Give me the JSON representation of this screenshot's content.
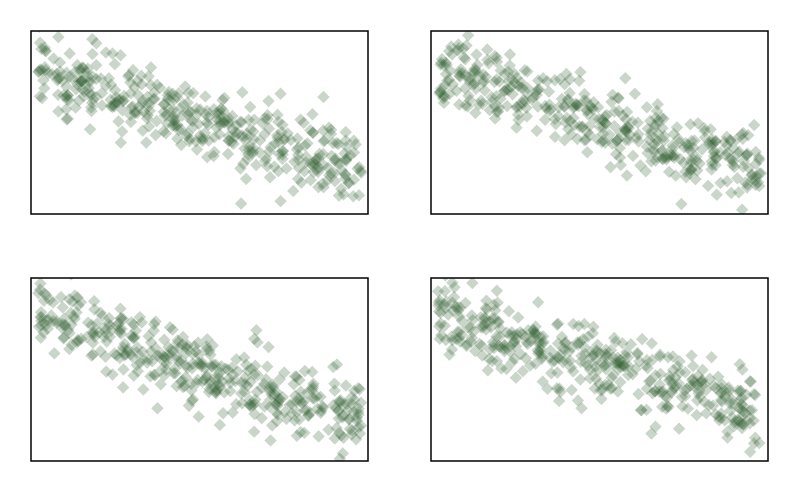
{
  "chart_data": [
    {
      "type": "scatter",
      "title": "",
      "xlabel": "",
      "ylabel": "",
      "grid": false,
      "legend": "none",
      "marker": {
        "shape": "diamond",
        "color": "#2d5a2d",
        "opacity": 0.25
      },
      "xlim": [
        0,
        1
      ],
      "ylim": [
        0,
        1
      ],
      "trend": {
        "x_start": 0.02,
        "x_end": 0.98,
        "y_start": 0.78,
        "y_end": 0.23,
        "spread": 0.1
      },
      "n_points": 400,
      "seed": 11
    },
    {
      "type": "scatter",
      "title": "",
      "xlabel": "",
      "ylabel": "",
      "grid": false,
      "legend": "none",
      "marker": {
        "shape": "diamond",
        "color": "#2d5a2d",
        "opacity": 0.25
      },
      "xlim": [
        0,
        1
      ],
      "ylim": [
        0,
        1
      ],
      "trend": {
        "x_start": 0.02,
        "x_end": 0.98,
        "y_start": 0.8,
        "y_end": 0.2,
        "spread": 0.1
      },
      "n_points": 400,
      "seed": 23
    },
    {
      "type": "scatter",
      "title": "",
      "xlabel": "",
      "ylabel": "",
      "grid": false,
      "legend": "none",
      "marker": {
        "shape": "diamond",
        "color": "#2d5a2d",
        "opacity": 0.25
      },
      "xlim": [
        0,
        1
      ],
      "ylim": [
        0,
        1
      ],
      "trend": {
        "x_start": 0.02,
        "x_end": 0.98,
        "y_start": 0.8,
        "y_end": 0.22,
        "spread": 0.1
      },
      "n_points": 400,
      "seed": 37
    },
    {
      "type": "scatter",
      "title": "",
      "xlabel": "",
      "ylabel": "",
      "grid": false,
      "legend": "none",
      "marker": {
        "shape": "diamond",
        "color": "#2d5a2d",
        "opacity": 0.25
      },
      "xlim": [
        0,
        1
      ],
      "ylim": [
        0,
        1
      ],
      "trend": {
        "x_start": 0.02,
        "x_end": 0.98,
        "y_start": 0.8,
        "y_end": 0.25,
        "spread": 0.1
      },
      "n_points": 400,
      "seed": 53
    }
  ]
}
